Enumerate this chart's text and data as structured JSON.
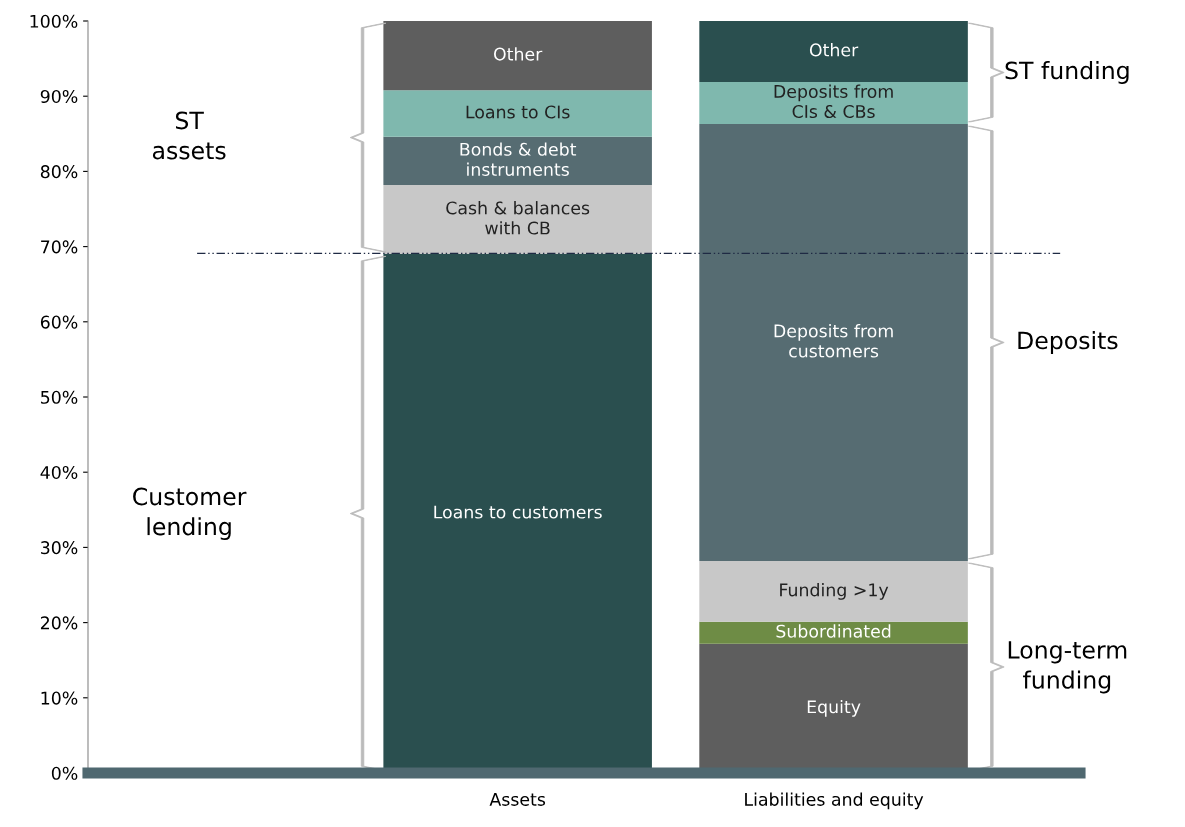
{
  "chart_data": {
    "type": "bar",
    "stacked": true,
    "categories": [
      "Assets",
      "Liabilities and equity"
    ],
    "series": [
      {
        "name": "Loans to customers",
        "color": "#2a4f4f",
        "values": [
          69,
          null
        ]
      },
      {
        "name": "Cash & balances\nwith CB",
        "color": "#c8c8c8",
        "values": [
          9.2,
          null
        ]
      },
      {
        "name": "Bonds & debt\ninstruments",
        "color": "#566c72",
        "values": [
          6.4,
          null
        ]
      },
      {
        "name": "Loans to CIs",
        "color": "#7fb8ae",
        "values": [
          6.2,
          null
        ]
      },
      {
        "name": "Other",
        "color": "#5e5e5e",
        "values": [
          9.2,
          null
        ]
      },
      {
        "name": "Equity",
        "color": "#5e5e5e",
        "values": [
          null,
          17.2
        ]
      },
      {
        "name": "Subordinated",
        "color": "#6e8c45",
        "values": [
          null,
          2.9
        ]
      },
      {
        "name": "Funding >1y",
        "color": "#c8c8c8",
        "values": [
          null,
          8.1
        ]
      },
      {
        "name": "Deposits from\ncustomers",
        "color": "#566c72",
        "values": [
          null,
          58.1
        ]
      },
      {
        "name": "Deposits from\nCIs & CBs",
        "color": "#7fb8ae",
        "values": [
          null,
          5.6
        ]
      },
      {
        "name": "Other",
        "color": "#2a4f4f",
        "values": [
          null,
          8.1
        ]
      }
    ],
    "ylim": [
      0,
      100
    ],
    "yticks": [
      {
        "value": 0,
        "label": "0%"
      },
      {
        "value": 10,
        "label": "10%"
      },
      {
        "value": 20,
        "label": "20%"
      },
      {
        "value": 30,
        "label": "30%"
      },
      {
        "value": 40,
        "label": "40%"
      },
      {
        "value": 50,
        "label": "50%"
      },
      {
        "value": 60,
        "label": "60%"
      },
      {
        "value": 70,
        "label": "70%"
      },
      {
        "value": 80,
        "label": "80%"
      },
      {
        "value": 90,
        "label": "90%"
      },
      {
        "value": 100,
        "label": "100%"
      }
    ],
    "ref_lines": [
      {
        "axis": "y",
        "value": 69.1,
        "color": "#1f2a44",
        "line_style": "dashed"
      }
    ],
    "annotations": [
      "Customer\nlending",
      "ST\nassets",
      "Long-term\nfunding",
      "Deposits",
      "ST funding"
    ],
    "grid": false
  }
}
